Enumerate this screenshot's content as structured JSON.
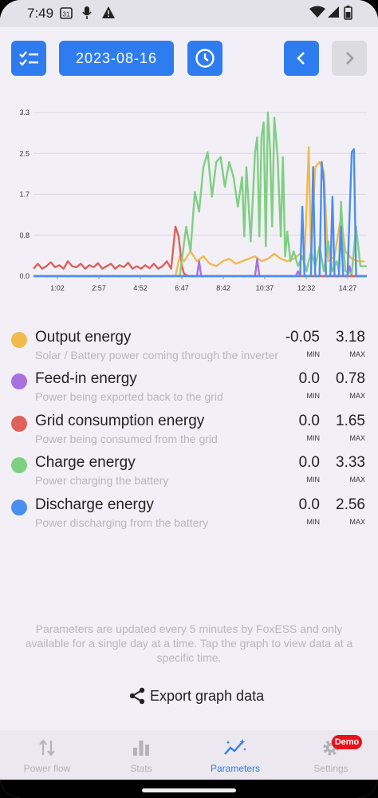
{
  "status_bar": {
    "time": "7:49",
    "calendar_day": "31",
    "icons": [
      "calendar-icon",
      "mic-icon",
      "warning-icon",
      "wifi-icon",
      "signal-icon",
      "battery-icon"
    ]
  },
  "toolbar": {
    "date": "2023-08-16",
    "buttons": [
      "checklist-icon",
      "clock-icon",
      "chevron-left-icon",
      "chevron-right-icon"
    ],
    "accent": "#2f7cf0"
  },
  "chart_data": {
    "type": "line",
    "x_ticks": [
      "1:02",
      "2:57",
      "4:52",
      "6:47",
      "8:42",
      "10:37",
      "12:32",
      "14:27"
    ],
    "y_ticks": [
      "0.0",
      "0.8",
      "1.7",
      "2.5",
      "3.3"
    ],
    "ylim": [
      0,
      3.3
    ],
    "x_range_hours": [
      0,
      15.5
    ],
    "grid": true,
    "series": [
      {
        "key": "output",
        "color": "#f2b94d",
        "points": [
          [
            6.6,
            0
          ],
          [
            6.8,
            0.4
          ],
          [
            7.0,
            0.3
          ],
          [
            7.3,
            0.5
          ],
          [
            7.6,
            0.3
          ],
          [
            7.9,
            0.4
          ],
          [
            8.2,
            0.25
          ],
          [
            8.5,
            0.2
          ],
          [
            8.8,
            0.3
          ],
          [
            9.1,
            0.35
          ],
          [
            9.4,
            0.25
          ],
          [
            9.7,
            0.3
          ],
          [
            10.0,
            0.35
          ],
          [
            10.3,
            0.4
          ],
          [
            10.6,
            0.3
          ],
          [
            10.9,
            0.35
          ],
          [
            11.2,
            0.45
          ],
          [
            11.5,
            0.35
          ],
          [
            11.8,
            0.3
          ],
          [
            12.1,
            0.35
          ],
          [
            12.4,
            0.45
          ],
          [
            12.6,
            0.3
          ],
          [
            12.8,
            2.6
          ],
          [
            12.9,
            0.4
          ],
          [
            13.1,
            2.2
          ],
          [
            13.3,
            2.3
          ],
          [
            13.5,
            2.1
          ],
          [
            13.7,
            0.3
          ],
          [
            14.0,
            0.4
          ],
          [
            14.3,
            1.2
          ],
          [
            14.5,
            0.5
          ],
          [
            14.8,
            0.35
          ],
          [
            15.1,
            0.3
          ],
          [
            15.4,
            0.3
          ]
        ]
      },
      {
        "key": "feedin",
        "color": "#a772e0",
        "points": [
          [
            0,
            0
          ],
          [
            7.6,
            0
          ],
          [
            7.7,
            0.3
          ],
          [
            7.8,
            0
          ],
          [
            10.3,
            0
          ],
          [
            10.4,
            0.35
          ],
          [
            10.5,
            0
          ],
          [
            12.2,
            0
          ],
          [
            12.3,
            0.1
          ],
          [
            12.4,
            0
          ],
          [
            14.6,
            0
          ],
          [
            14.7,
            0.2
          ],
          [
            14.8,
            0
          ],
          [
            15.5,
            0
          ]
        ]
      },
      {
        "key": "grid",
        "color": "#e0605a",
        "points": [
          [
            0,
            0.15
          ],
          [
            0.2,
            0.25
          ],
          [
            0.4,
            0.15
          ],
          [
            0.6,
            0.2
          ],
          [
            0.8,
            0.28
          ],
          [
            1.0,
            0.18
          ],
          [
            1.2,
            0.22
          ],
          [
            1.4,
            0.15
          ],
          [
            1.6,
            0.3
          ],
          [
            1.8,
            0.2
          ],
          [
            2.0,
            0.18
          ],
          [
            2.2,
            0.25
          ],
          [
            2.4,
            0.15
          ],
          [
            2.6,
            0.22
          ],
          [
            2.8,
            0.18
          ],
          [
            3.0,
            0.26
          ],
          [
            3.2,
            0.15
          ],
          [
            3.4,
            0.2
          ],
          [
            3.6,
            0.25
          ],
          [
            3.8,
            0.15
          ],
          [
            4.0,
            0.22
          ],
          [
            4.2,
            0.18
          ],
          [
            4.4,
            0.27
          ],
          [
            4.6,
            0.15
          ],
          [
            4.8,
            0.2
          ],
          [
            5.0,
            0.15
          ],
          [
            5.2,
            0.22
          ],
          [
            5.4,
            0.16
          ],
          [
            5.6,
            0.25
          ],
          [
            5.8,
            0.15
          ],
          [
            6.0,
            0.2
          ],
          [
            6.2,
            0.3
          ],
          [
            6.4,
            0.15
          ],
          [
            6.6,
            1.0
          ],
          [
            6.75,
            0.8
          ],
          [
            6.9,
            0.2
          ],
          [
            7.0,
            0.05
          ],
          [
            7.2,
            0
          ],
          [
            15.5,
            0
          ]
        ]
      },
      {
        "key": "charge",
        "color": "#7fcf82",
        "points": [
          [
            0,
            0
          ],
          [
            6.8,
            0
          ],
          [
            7.1,
            1.0
          ],
          [
            7.3,
            0.5
          ],
          [
            7.5,
            1.7
          ],
          [
            7.7,
            1.3
          ],
          [
            7.9,
            2.2
          ],
          [
            8.1,
            2.5
          ],
          [
            8.3,
            1.6
          ],
          [
            8.5,
            2.3
          ],
          [
            8.7,
            2.4
          ],
          [
            8.9,
            1.8
          ],
          [
            9.1,
            2.3
          ],
          [
            9.3,
            2.0
          ],
          [
            9.5,
            1.4
          ],
          [
            9.7,
            2.0
          ],
          [
            9.8,
            0.8
          ],
          [
            9.9,
            2.2
          ],
          [
            10.1,
            0.7
          ],
          [
            10.3,
            2.5
          ],
          [
            10.4,
            2.8
          ],
          [
            10.5,
            0.8
          ],
          [
            10.6,
            2.8
          ],
          [
            10.7,
            3.1
          ],
          [
            10.8,
            0.6
          ],
          [
            10.9,
            3.3
          ],
          [
            11.0,
            2.6
          ],
          [
            11.1,
            1.0
          ],
          [
            11.2,
            3.2
          ],
          [
            11.35,
            2.4
          ],
          [
            11.5,
            0.8
          ],
          [
            11.6,
            2.4
          ],
          [
            11.7,
            0.4
          ],
          [
            11.8,
            0.9
          ],
          [
            11.95,
            0.3
          ],
          [
            12.1,
            0.5
          ],
          [
            12.3,
            0.2
          ],
          [
            12.5,
            0.4
          ],
          [
            12.7,
            0.1
          ],
          [
            12.9,
            0.5
          ],
          [
            13.1,
            0.2
          ],
          [
            13.3,
            0.6
          ],
          [
            13.5,
            0.1
          ],
          [
            13.7,
            0.7
          ],
          [
            13.9,
            0.1
          ],
          [
            14.1,
            0.3
          ],
          [
            14.2,
            0.1
          ],
          [
            14.3,
            1.5
          ],
          [
            14.4,
            0.7
          ],
          [
            14.5,
            0.1
          ],
          [
            14.8,
            0.05
          ],
          [
            15.0,
            1.0
          ],
          [
            15.2,
            0.2
          ],
          [
            15.5,
            0.2
          ]
        ]
      },
      {
        "key": "discharge",
        "color": "#4b8ef0",
        "points": [
          [
            0,
            0
          ],
          [
            12.4,
            0
          ],
          [
            12.5,
            1.4
          ],
          [
            12.6,
            0
          ],
          [
            12.9,
            0
          ],
          [
            13.0,
            2.2
          ],
          [
            13.1,
            0
          ],
          [
            13.3,
            0
          ],
          [
            13.4,
            2.3
          ],
          [
            13.5,
            1.9
          ],
          [
            13.6,
            0
          ],
          [
            13.8,
            0
          ],
          [
            13.9,
            1.6
          ],
          [
            14.0,
            0
          ],
          [
            14.2,
            0
          ],
          [
            14.3,
            1.0
          ],
          [
            14.4,
            0
          ],
          [
            14.6,
            0
          ],
          [
            14.8,
            2.5
          ],
          [
            14.9,
            2.56
          ],
          [
            15.0,
            0
          ],
          [
            15.5,
            0
          ]
        ]
      }
    ]
  },
  "legend": [
    {
      "title": "Output energy",
      "subtitle": "Solar / Battery power coming through the inverter",
      "min": "-0.05",
      "max": "3.18",
      "min_cap": "MIN",
      "max_cap": "MAX",
      "color": "#f2b94d"
    },
    {
      "title": "Feed-in energy",
      "subtitle": "Power being exported back to the grid",
      "min": "0.0",
      "max": "0.78",
      "min_cap": "MIN",
      "max_cap": "MAX",
      "color": "#a772e0"
    },
    {
      "title": "Grid consumption energy",
      "subtitle": "Power being consumed from the grid",
      "min": "0.0",
      "max": "1.65",
      "min_cap": "MIN",
      "max_cap": "MAX",
      "color": "#e0605a"
    },
    {
      "title": "Charge energy",
      "subtitle": "Power charging the battery",
      "min": "0.0",
      "max": "3.33",
      "min_cap": "MIN",
      "max_cap": "MAX",
      "color": "#7fcf82"
    },
    {
      "title": "Discharge energy",
      "subtitle": "Power discharging from the battery",
      "min": "0.0",
      "max": "2.56",
      "min_cap": "MIN",
      "max_cap": "MAX",
      "color": "#4b8ef0"
    }
  ],
  "info_text": "Parameters are updated every 5 minutes by FoxESS and only available for a single day at a time. Tap the graph to view data at a specific time.",
  "export_label": "Export graph data",
  "nav": [
    {
      "label": "Power flow",
      "icon": "power-flow-icon"
    },
    {
      "label": "Stats",
      "icon": "stats-icon"
    },
    {
      "label": "Parameters",
      "icon": "parameters-icon",
      "active": true
    },
    {
      "label": "Settings",
      "icon": "settings-icon"
    }
  ],
  "demo_badge": "Demo"
}
